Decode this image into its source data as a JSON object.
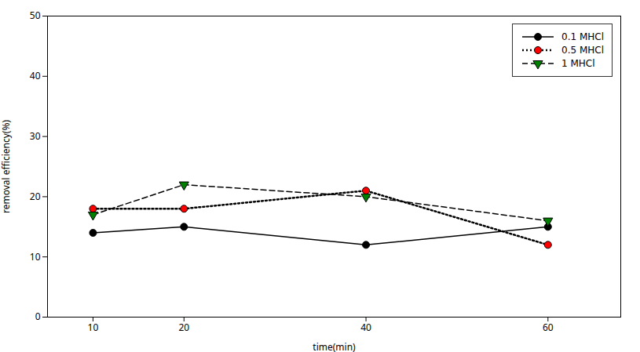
{
  "chart_data": {
    "type": "line",
    "x": [
      10,
      20,
      40,
      60
    ],
    "series": [
      {
        "name": "0.1 MHCl",
        "values": [
          14,
          15,
          12,
          15
        ],
        "color": "black",
        "marker": "circle",
        "line_style": "solid"
      },
      {
        "name": "0.5 MHCl",
        "values": [
          18,
          18,
          21,
          12
        ],
        "color": "red",
        "marker": "circle",
        "line_style": "dotted"
      },
      {
        "name": "1 MHCl",
        "values": [
          17,
          22,
          20,
          16
        ],
        "color": "green",
        "marker": "triangle-down",
        "line_style": "dashed"
      }
    ],
    "xlabel": "time(min)",
    "ylabel": "removal efficiency(%)",
    "xlim": [
      5,
      68
    ],
    "ylim": [
      0,
      50
    ],
    "xticks": [
      10,
      20,
      40,
      60
    ],
    "yticks": [
      0,
      10,
      20,
      30,
      40,
      50
    ],
    "legend": "upper right",
    "grid": false
  }
}
